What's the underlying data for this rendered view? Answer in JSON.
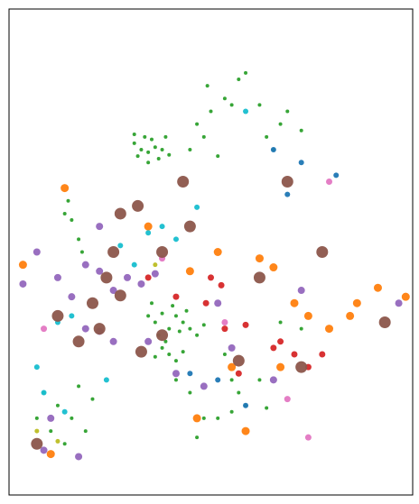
{
  "chart_data": {
    "type": "scatter",
    "xlim": [
      -12,
      46
    ],
    "ylim": [
      34,
      72
    ],
    "series": [
      {
        "color": "#2ca02c",
        "size": 2,
        "x": [
          6,
          7,
          8,
          9,
          6.5,
          8.5,
          10,
          7.5,
          9.5,
          6,
          11,
          8,
          10.5,
          15,
          17,
          19,
          21,
          16,
          18,
          14,
          20,
          22,
          16.5,
          25,
          27,
          26,
          28,
          30,
          24,
          -4,
          -3,
          -2,
          -1.5,
          -3.5,
          8,
          9,
          10,
          11,
          12,
          13,
          9.5,
          10.5,
          11.5,
          12.5,
          14,
          15,
          16,
          8.5,
          13.5,
          10,
          11,
          12,
          13,
          9,
          19,
          20,
          22,
          24,
          21,
          30,
          27,
          18,
          20,
          25,
          -7,
          -5,
          -3,
          -6,
          -4,
          -2,
          0,
          -8,
          -1,
          14,
          16,
          15,
          12
        ],
        "values": [
          61.5,
          61,
          60.8,
          61.2,
          60.5,
          61.8,
          61,
          62,
          60.3,
          62.2,
          60.6,
          60,
          62,
          63,
          64,
          65,
          66.5,
          62,
          60.5,
          61,
          64.5,
          67,
          66,
          62,
          63,
          61,
          64,
          62.5,
          64.5,
          56,
          55.5,
          54,
          53,
          57,
          48,
          47.5,
          48.2,
          47,
          48,
          47.5,
          46.5,
          46,
          48.8,
          46.8,
          47,
          46.5,
          47.3,
          49,
          48.4,
          45.5,
          45,
          44.5,
          45.2,
          44.8,
          45,
          43,
          41,
          43,
          42,
          47,
          47.5,
          40,
          40.5,
          40.8,
          42,
          41,
          40,
          39,
          38,
          42.5,
          41.5,
          40,
          39,
          42,
          40,
          38.5,
          43
        ]
      },
      {
        "color": "#9467bd",
        "size": 4,
        "x": [
          -5,
          -3,
          -1,
          1,
          3,
          5,
          7,
          9,
          -1,
          1,
          3,
          -6,
          -7,
          -2,
          8,
          12,
          16,
          20,
          26,
          30,
          18,
          44,
          -8,
          1,
          -10
        ],
        "values": [
          51,
          49.5,
          52,
          51.5,
          50,
          51,
          50.5,
          51.3,
          47,
          46.8,
          46,
          40,
          37.5,
          37,
          46,
          43.5,
          42.5,
          45.5,
          43,
          50,
          49,
          49,
          53,
          55,
          50.5
        ]
      },
      {
        "color": "#ff7f0e",
        "size": 4.5,
        "x": [
          -4,
          8,
          14,
          18,
          24,
          26,
          29,
          31,
          34,
          38,
          41,
          45,
          27,
          20,
          15,
          -6,
          22,
          37,
          -10
        ],
        "values": [
          58,
          55,
          51.5,
          53,
          52.5,
          51.8,
          49,
          48,
          47,
          49,
          50.2,
          49.5,
          44,
          44,
          40,
          37.2,
          39,
          48,
          52
        ]
      },
      {
        "color": "#d62728",
        "size": 3.5,
        "x": [
          17,
          18.5,
          16.3,
          19,
          22,
          27,
          29,
          31,
          33,
          21,
          12,
          8,
          26
        ],
        "values": [
          51,
          50.4,
          49,
          47,
          47.3,
          46,
          45,
          44,
          45,
          43.5,
          49.5,
          51,
          45.5
        ]
      },
      {
        "color": "#17becf",
        "size": 3,
        "x": [
          -5,
          -3,
          -7,
          -4,
          2,
          6,
          8,
          12,
          10,
          15,
          22,
          -8,
          4
        ],
        "values": [
          47.5,
          48,
          42,
          40.5,
          43,
          52,
          54.5,
          54,
          55,
          56.5,
          64,
          44,
          53.5
        ]
      },
      {
        "color": "#1f77b4",
        "size": 3,
        "x": [
          26,
          30,
          28,
          18,
          14,
          22,
          35
        ],
        "values": [
          61,
          60,
          57.5,
          43,
          43.5,
          41,
          59
        ]
      },
      {
        "color": "#e377c2",
        "size": 3.5,
        "x": [
          34,
          -7,
          19,
          31,
          10,
          28
        ],
        "values": [
          58.5,
          47,
          47.5,
          38.5,
          52.5,
          41.5
        ]
      },
      {
        "color": "#bcbd22",
        "size": 2.5,
        "x": [
          -8,
          -5,
          9
        ],
        "values": [
          39,
          38.2,
          52
        ]
      },
      {
        "color": "#8c564b",
        "size": 6.5,
        "x": [
          4,
          6.5,
          3,
          -5,
          0,
          2,
          -2,
          4,
          10,
          13,
          14,
          28,
          33,
          42,
          24,
          10,
          7,
          21,
          1,
          -8,
          30
        ],
        "values": [
          56,
          56.6,
          53,
          48,
          49,
          51,
          46,
          49.6,
          53,
          58.5,
          55,
          58.5,
          53,
          47.5,
          51,
          46.5,
          45.2,
          44.5,
          47,
          38,
          44
        ]
      }
    ]
  }
}
